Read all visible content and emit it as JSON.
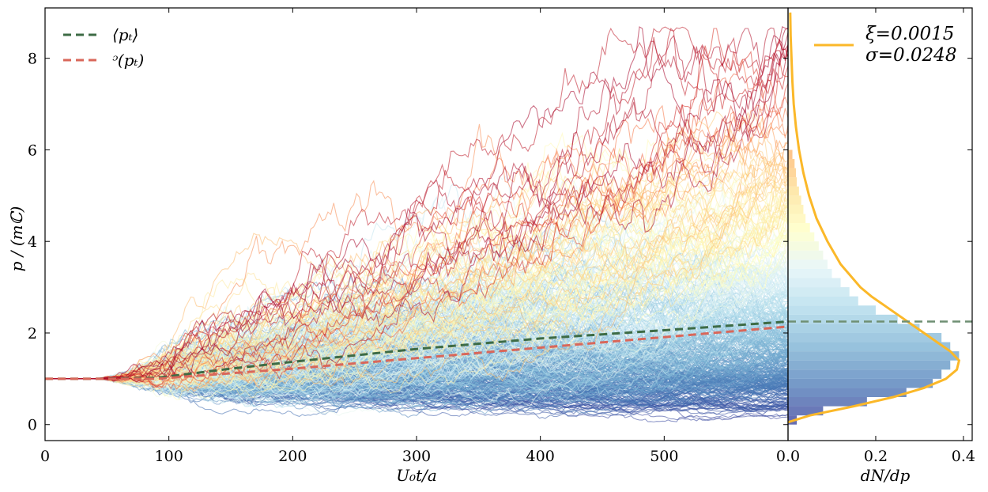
{
  "chart_data": [
    {
      "type": "line",
      "xlabel": "U₀t/a",
      "ylabel": "p / (mℂ)",
      "xlim": [
        0,
        600
      ],
      "ylim": [
        -0.35,
        9.1
      ],
      "xticks": [
        0,
        100,
        200,
        300,
        400,
        500
      ],
      "yticks": [
        0,
        2,
        4,
        6,
        8
      ],
      "grid": false,
      "legend_position": "top-left",
      "colormap": [
        "#313695",
        "#4575b4",
        "#74add1",
        "#abd9e9",
        "#e0f3f8",
        "#ffffbf",
        "#fee090",
        "#fdae61",
        "#f46d43",
        "#d73027",
        "#a50026"
      ],
      "series": [
        {
          "name": "⟨pₜ⟩",
          "color": "#3d6b45",
          "style": "dashed",
          "x": [
            0,
            40,
            90,
            150,
            200,
            300,
            400,
            500,
            600
          ],
          "y": [
            1.0,
            1.0,
            1.02,
            1.22,
            1.37,
            1.65,
            1.88,
            2.06,
            2.25
          ]
        },
        {
          "name": "ᵓ(pₜ)",
          "color": "#d9675a",
          "style": "dashed",
          "x": [
            0,
            40,
            90,
            150,
            200,
            300,
            400,
            500,
            600
          ],
          "y": [
            1.0,
            1.0,
            1.0,
            1.12,
            1.22,
            1.45,
            1.68,
            1.91,
            2.14
          ]
        }
      ],
      "trajectories": {
        "start_value": 1.0,
        "onset_x": 40,
        "x_end": 600,
        "max_value": 8.7,
        "min_value": 0.05
      }
    },
    {
      "type": "bar",
      "orientation": "horizontal",
      "xlabel": "dN/dp",
      "xlim": [
        0,
        0.42
      ],
      "xticks": [
        0.0,
        0.2,
        0.4
      ],
      "legend_position": "top-right",
      "bin_width": 0.2,
      "bins": {
        "y": [
          0.1,
          0.3,
          0.5,
          0.7,
          0.9,
          1.1,
          1.3,
          1.5,
          1.7,
          1.9,
          2.1,
          2.3,
          2.5,
          2.7,
          2.9,
          3.1,
          3.3,
          3.5,
          3.7,
          3.9,
          4.1,
          4.3,
          4.5,
          4.7,
          4.9,
          5.1,
          5.3,
          5.5,
          5.7,
          5.9
        ],
        "density": [
          0.02,
          0.08,
          0.18,
          0.27,
          0.33,
          0.35,
          0.37,
          0.39,
          0.37,
          0.35,
          0.3,
          0.25,
          0.2,
          0.16,
          0.14,
          0.12,
          0.1,
          0.09,
          0.08,
          0.07,
          0.06,
          0.05,
          0.04,
          0.035,
          0.03,
          0.025,
          0.02,
          0.018,
          0.015,
          0.01
        ]
      },
      "fit_curve": {
        "color": "#fbb829",
        "labels": [
          "ξ=0.0015",
          "σ=0.0248"
        ],
        "y": [
          0.05,
          0.2,
          0.4,
          0.6,
          0.8,
          1.0,
          1.2,
          1.4,
          1.6,
          1.8,
          2.0,
          2.2,
          2.4,
          2.6,
          2.8,
          3.0,
          3.5,
          4.0,
          4.5,
          5.0,
          5.5,
          6.0,
          6.5,
          7.0,
          7.5,
          8.0,
          8.5,
          9.0
        ],
        "density": [
          0.0,
          0.05,
          0.15,
          0.24,
          0.31,
          0.36,
          0.385,
          0.39,
          0.37,
          0.34,
          0.31,
          0.28,
          0.25,
          0.22,
          0.19,
          0.165,
          0.12,
          0.09,
          0.065,
          0.048,
          0.035,
          0.025,
          0.018,
          0.013,
          0.01,
          0.008,
          0.006,
          0.005
        ]
      },
      "mean_line": {
        "y": 2.25,
        "color": "#6f8f73"
      }
    }
  ]
}
